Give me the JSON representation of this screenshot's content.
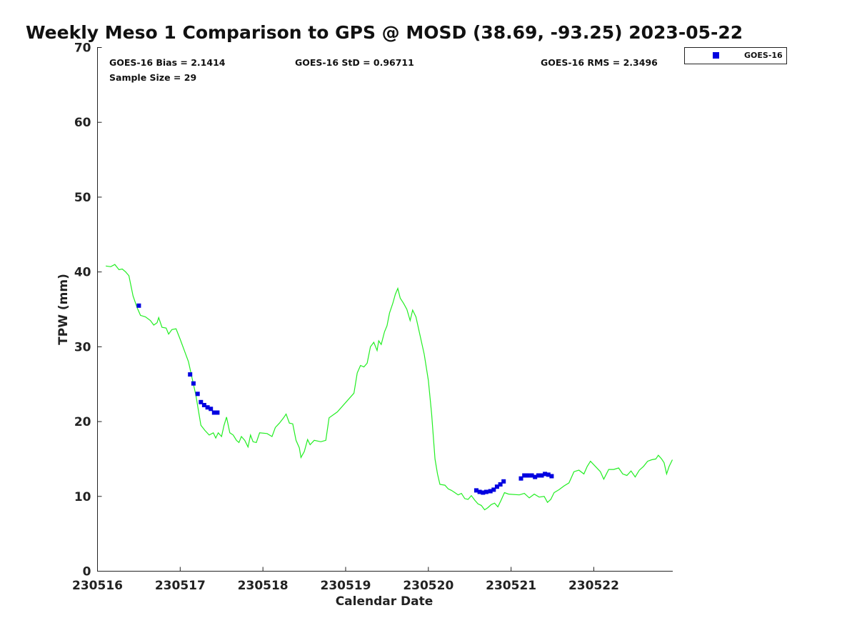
{
  "chart_data": {
    "type": "line",
    "title": "Weekly Meso 1 Comparison to GPS @ MOSD (38.69, -93.25) 2023-05-22",
    "xlabel": "Calendar Date",
    "ylabel": "TPW (mm)",
    "xlim": [
      0,
      6.95
    ],
    "ylim": [
      0,
      70
    ],
    "x_ticks": [
      0,
      1,
      2,
      3,
      4,
      5,
      6
    ],
    "x_tick_labels": [
      "230516",
      "230517",
      "230518",
      "230519",
      "230520",
      "230521",
      "230522"
    ],
    "y_ticks": [
      0,
      10,
      20,
      30,
      40,
      50,
      60,
      70
    ],
    "y_tick_labels": [
      "0",
      "10",
      "20",
      "30",
      "40",
      "50",
      "60",
      "70"
    ],
    "grid": false,
    "legend_position": "outside-top-right",
    "stats": {
      "bias": "GOES-16 Bias = 2.1414",
      "std": "GOES-16 StD = 0.96711",
      "rms": "GOES-16 RMS = 2.3496",
      "sample_size": "Sample Size = 29"
    },
    "series": [
      {
        "name": "GOES-16",
        "kind": "scatter",
        "color": "#0000e0",
        "marker": "square",
        "points": [
          [
            0.5,
            35.5
          ],
          [
            1.12,
            26.3
          ],
          [
            1.16,
            25.1
          ],
          [
            1.21,
            23.7
          ],
          [
            1.25,
            22.6
          ],
          [
            1.29,
            22.2
          ],
          [
            1.33,
            21.9
          ],
          [
            1.37,
            21.7
          ],
          [
            1.41,
            21.2
          ],
          [
            1.45,
            21.2
          ],
          [
            4.58,
            10.8
          ],
          [
            4.62,
            10.6
          ],
          [
            4.66,
            10.5
          ],
          [
            4.7,
            10.6
          ],
          [
            4.75,
            10.7
          ],
          [
            4.79,
            10.9
          ],
          [
            4.83,
            11.3
          ],
          [
            4.87,
            11.6
          ],
          [
            4.91,
            12.0
          ],
          [
            5.12,
            12.4
          ],
          [
            5.16,
            12.8
          ],
          [
            5.2,
            12.8
          ],
          [
            5.25,
            12.8
          ],
          [
            5.29,
            12.6
          ],
          [
            5.33,
            12.8
          ],
          [
            5.37,
            12.8
          ],
          [
            5.41,
            13.0
          ],
          [
            5.45,
            12.9
          ],
          [
            5.49,
            12.7
          ]
        ]
      },
      {
        "name": "GPS",
        "kind": "line",
        "color": "#22ee22",
        "points": [
          [
            0.1,
            40.8
          ],
          [
            0.16,
            40.7
          ],
          [
            0.21,
            41.0
          ],
          [
            0.26,
            40.3
          ],
          [
            0.3,
            40.4
          ],
          [
            0.34,
            40.0
          ],
          [
            0.38,
            39.5
          ],
          [
            0.43,
            36.8
          ],
          [
            0.48,
            35.2
          ],
          [
            0.52,
            34.2
          ],
          [
            0.58,
            34.0
          ],
          [
            0.64,
            33.5
          ],
          [
            0.68,
            32.9
          ],
          [
            0.72,
            33.2
          ],
          [
            0.74,
            33.9
          ],
          [
            0.78,
            32.6
          ],
          [
            0.83,
            32.5
          ],
          [
            0.86,
            31.7
          ],
          [
            0.9,
            32.3
          ],
          [
            0.95,
            32.4
          ],
          [
            1.0,
            31.0
          ],
          [
            1.05,
            29.5
          ],
          [
            1.1,
            28.0
          ],
          [
            1.15,
            25.5
          ],
          [
            1.19,
            23.5
          ],
          [
            1.22,
            21.5
          ],
          [
            1.25,
            19.5
          ],
          [
            1.3,
            18.8
          ],
          [
            1.35,
            18.2
          ],
          [
            1.4,
            18.5
          ],
          [
            1.43,
            17.8
          ],
          [
            1.46,
            18.5
          ],
          [
            1.5,
            18.0
          ],
          [
            1.53,
            19.5
          ],
          [
            1.56,
            20.6
          ],
          [
            1.6,
            18.5
          ],
          [
            1.64,
            18.2
          ],
          [
            1.68,
            17.5
          ],
          [
            1.71,
            17.2
          ],
          [
            1.74,
            18.0
          ],
          [
            1.78,
            17.5
          ],
          [
            1.82,
            16.6
          ],
          [
            1.85,
            18.2
          ],
          [
            1.88,
            17.3
          ],
          [
            1.92,
            17.2
          ],
          [
            1.96,
            18.5
          ],
          [
            2.05,
            18.4
          ],
          [
            2.11,
            18.0
          ],
          [
            2.15,
            19.2
          ],
          [
            2.2,
            19.8
          ],
          [
            2.25,
            20.5
          ],
          [
            2.28,
            21.0
          ],
          [
            2.32,
            19.8
          ],
          [
            2.36,
            19.7
          ],
          [
            2.4,
            17.5
          ],
          [
            2.44,
            16.5
          ],
          [
            2.46,
            15.2
          ],
          [
            2.5,
            16.0
          ],
          [
            2.54,
            17.6
          ],
          [
            2.57,
            16.9
          ],
          [
            2.62,
            17.5
          ],
          [
            2.7,
            17.3
          ],
          [
            2.76,
            17.5
          ],
          [
            2.8,
            20.5
          ],
          [
            2.9,
            21.3
          ],
          [
            3.1,
            23.8
          ],
          [
            3.14,
            26.5
          ],
          [
            3.18,
            27.5
          ],
          [
            3.22,
            27.3
          ],
          [
            3.26,
            27.8
          ],
          [
            3.3,
            30.0
          ],
          [
            3.34,
            30.6
          ],
          [
            3.38,
            29.5
          ],
          [
            3.4,
            30.8
          ],
          [
            3.43,
            30.3
          ],
          [
            3.47,
            32.0
          ],
          [
            3.5,
            32.8
          ],
          [
            3.53,
            34.5
          ],
          [
            3.57,
            35.8
          ],
          [
            3.6,
            37.0
          ],
          [
            3.63,
            37.8
          ],
          [
            3.66,
            36.5
          ],
          [
            3.7,
            35.8
          ],
          [
            3.74,
            35.0
          ],
          [
            3.78,
            33.5
          ],
          [
            3.81,
            34.9
          ],
          [
            3.85,
            34.0
          ],
          [
            3.9,
            31.5
          ],
          [
            3.95,
            29.0
          ],
          [
            4.0,
            25.5
          ],
          [
            4.04,
            21.0
          ],
          [
            4.08,
            15.0
          ],
          [
            4.11,
            13.0
          ],
          [
            4.14,
            11.6
          ],
          [
            4.2,
            11.5
          ],
          [
            4.24,
            11.0
          ],
          [
            4.28,
            10.8
          ],
          [
            4.32,
            10.5
          ],
          [
            4.36,
            10.2
          ],
          [
            4.4,
            10.4
          ],
          [
            4.44,
            9.7
          ],
          [
            4.48,
            9.6
          ],
          [
            4.52,
            10.1
          ],
          [
            4.56,
            9.5
          ],
          [
            4.6,
            9.0
          ],
          [
            4.64,
            8.8
          ],
          [
            4.68,
            8.2
          ],
          [
            4.72,
            8.5
          ],
          [
            4.76,
            8.9
          ],
          [
            4.8,
            9.1
          ],
          [
            4.84,
            8.6
          ],
          [
            4.88,
            9.5
          ],
          [
            4.92,
            10.5
          ],
          [
            4.97,
            10.3
          ],
          [
            5.1,
            10.2
          ],
          [
            5.16,
            10.4
          ],
          [
            5.22,
            9.8
          ],
          [
            5.28,
            10.3
          ],
          [
            5.34,
            9.9
          ],
          [
            5.4,
            10.0
          ],
          [
            5.44,
            9.2
          ],
          [
            5.48,
            9.6
          ],
          [
            5.52,
            10.5
          ],
          [
            5.58,
            10.9
          ],
          [
            5.64,
            11.4
          ],
          [
            5.7,
            11.8
          ],
          [
            5.76,
            13.3
          ],
          [
            5.82,
            13.5
          ],
          [
            5.88,
            13.0
          ],
          [
            5.92,
            14.0
          ],
          [
            5.96,
            14.7
          ],
          [
            6.02,
            14.0
          ],
          [
            6.08,
            13.3
          ],
          [
            6.12,
            12.3
          ],
          [
            6.18,
            13.6
          ],
          [
            6.24,
            13.6
          ],
          [
            6.3,
            13.8
          ],
          [
            6.35,
            13.0
          ],
          [
            6.4,
            12.8
          ],
          [
            6.45,
            13.4
          ],
          [
            6.5,
            12.6
          ],
          [
            6.55,
            13.5
          ],
          [
            6.6,
            14.0
          ],
          [
            6.65,
            14.7
          ],
          [
            6.7,
            14.9
          ],
          [
            6.75,
            15.0
          ],
          [
            6.78,
            15.5
          ],
          [
            6.82,
            15.0
          ],
          [
            6.85,
            14.5
          ],
          [
            6.88,
            13.0
          ],
          [
            6.91,
            14.0
          ],
          [
            6.95,
            14.9
          ]
        ]
      }
    ]
  }
}
